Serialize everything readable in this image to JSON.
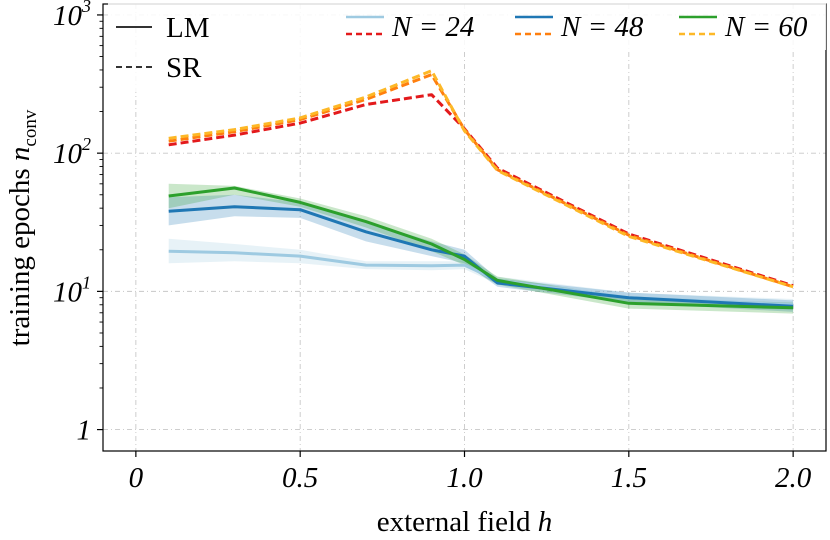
{
  "chart_data": {
    "type": "line",
    "xlabel": "external field h",
    "xlabel_parts": [
      "external field ",
      "h"
    ],
    "ylabel": "training epochs n_conv",
    "ylabel_parts": [
      "training epochs ",
      "n",
      "conv"
    ],
    "xlim": [
      -0.1,
      2.1
    ],
    "ylim": [
      0.7,
      1200
    ],
    "yscale": "log",
    "grid": true,
    "x_ticks": [
      {
        "value": 0,
        "label": "0"
      },
      {
        "value": 0.5,
        "label": "0.5"
      },
      {
        "value": 1.0,
        "label": "1.0"
      },
      {
        "value": 1.5,
        "label": "1.5"
      },
      {
        "value": 2.0,
        "label": "2.0"
      }
    ],
    "y_ticks": [
      {
        "value": 1,
        "base": "1",
        "exp": ""
      },
      {
        "value": 10,
        "base": "10",
        "exp": "1"
      },
      {
        "value": 100,
        "base": "10",
        "exp": "2"
      },
      {
        "value": 1000,
        "base": "10",
        "exp": "3"
      }
    ],
    "legend": {
      "styles": [
        {
          "label": "LM",
          "dash": "solid"
        },
        {
          "label": "SR",
          "dash": "dashed"
        }
      ],
      "sizes": [
        {
          "label": "N = 24",
          "colors": [
            "#9ecae1",
            "#e31a1c"
          ]
        },
        {
          "label": "N = 48",
          "colors": [
            "#1f77b4",
            "#ff7f0e"
          ]
        },
        {
          "label": "N = 60",
          "colors": [
            "#2ca02c",
            "#fdb827"
          ]
        }
      ]
    },
    "series": [
      {
        "method": "LM",
        "N": 24,
        "color": "#9ecae1",
        "dash": "solid",
        "x": [
          0.1,
          0.3,
          0.5,
          0.7,
          0.9,
          1.0,
          1.1,
          1.5,
          2.0
        ],
        "values": [
          19.5,
          19,
          18,
          15.5,
          15.3,
          15.5,
          12,
          9,
          8
        ],
        "lower": [
          16,
          16.5,
          16,
          14.5,
          14.2,
          14.5,
          11.3,
          8.4,
          7.3
        ],
        "upper": [
          24,
          22,
          20,
          16.5,
          16.5,
          16.5,
          12.8,
          9.8,
          8.8
        ]
      },
      {
        "method": "LM",
        "N": 48,
        "color": "#1f77b4",
        "dash": "solid",
        "x": [
          0.1,
          0.3,
          0.5,
          0.7,
          0.9,
          1.0,
          1.1,
          1.5,
          2.0
        ],
        "values": [
          38,
          41,
          39,
          27,
          20,
          18,
          11.5,
          9,
          7.8
        ],
        "lower": [
          30,
          35,
          34,
          23,
          18,
          16,
          10.8,
          8.3,
          7.1
        ],
        "upper": [
          48,
          50,
          44,
          32,
          23,
          20,
          12.4,
          9.8,
          8.6
        ]
      },
      {
        "method": "LM",
        "N": 60,
        "color": "#2ca02c",
        "dash": "solid",
        "x": [
          0.1,
          0.3,
          0.5,
          0.7,
          0.9,
          1.0,
          1.1,
          1.5,
          2.0
        ],
        "values": [
          49,
          56,
          44,
          32,
          22,
          17,
          12,
          8.2,
          7.6
        ],
        "lower": [
          40,
          50,
          41,
          29,
          19.5,
          15.5,
          11.2,
          7.5,
          6.9
        ],
        "upper": [
          60,
          58,
          47,
          35,
          24,
          18.5,
          12.8,
          9,
          8.3
        ]
      },
      {
        "method": "SR",
        "N": 24,
        "color": "#e31a1c",
        "dash": "dashed",
        "x": [
          0.1,
          0.3,
          0.5,
          0.7,
          0.9,
          1.0,
          1.1,
          1.5,
          2.0
        ],
        "values": [
          115,
          135,
          165,
          225,
          265,
          150,
          78,
          26,
          11
        ]
      },
      {
        "method": "SR",
        "N": 48,
        "color": "#ff7f0e",
        "dash": "dashed",
        "x": [
          0.1,
          0.3,
          0.5,
          0.7,
          0.9,
          1.0,
          1.1,
          1.5,
          2.0
        ],
        "values": [
          122,
          143,
          175,
          245,
          370,
          148,
          76,
          25.5,
          10.8
        ]
      },
      {
        "method": "SR",
        "N": 60,
        "color": "#fdb827",
        "dash": "dashed",
        "x": [
          0.1,
          0.3,
          0.5,
          0.7,
          0.9,
          1.0,
          1.1,
          1.5,
          2.0
        ],
        "values": [
          128,
          148,
          180,
          255,
          395,
          145,
          75,
          25,
          10.8
        ]
      }
    ]
  }
}
